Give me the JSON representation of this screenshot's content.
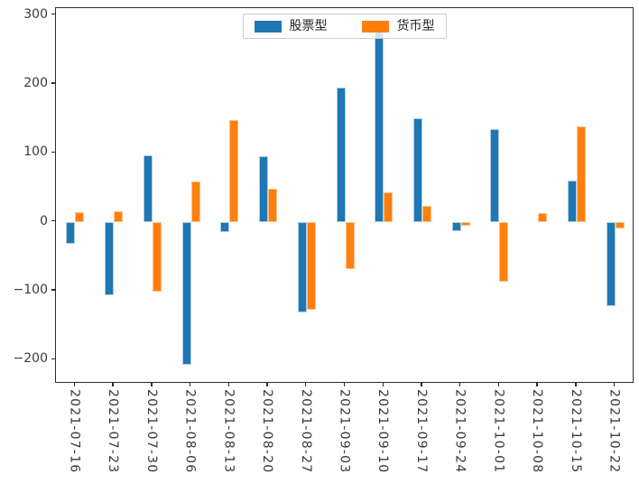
{
  "chart_data": {
    "type": "bar",
    "title": "",
    "xlabel": "",
    "ylabel": "",
    "categories": [
      "2021-07-16",
      "2021-07-23",
      "2021-07-30",
      "2021-08-06",
      "2021-08-13",
      "2021-08-20",
      "2021-08-27",
      "2021-09-03",
      "2021-09-10",
      "2021-09-17",
      "2021-09-24",
      "2021-10-01",
      "2021-10-08",
      "2021-10-15",
      "2021-10-22"
    ],
    "series": [
      {
        "name": "股票型",
        "color": "#1f77b4",
        "edge_color": "#aecde4",
        "values": [
          -32,
          -106,
          97,
          -207,
          -15,
          95,
          -131,
          195,
          277,
          150,
          -13,
          135,
          0,
          60,
          -122
        ]
      },
      {
        "name": "货币型",
        "color": "#ff7f0e",
        "edge_color": "#fec488",
        "values": [
          14,
          15,
          -101,
          58,
          148,
          48,
          -128,
          -69,
          43,
          23,
          -6,
          -87,
          13,
          139,
          -10
        ]
      }
    ],
    "ylim": [
      -235,
      310
    ],
    "yticks": [
      300,
      200,
      100,
      0,
      -100,
      -200
    ],
    "ytick_labels": [
      "300",
      "200",
      "100",
      "0",
      "−100",
      "−200"
    ],
    "legend_position": "upper center",
    "grid": false
  }
}
